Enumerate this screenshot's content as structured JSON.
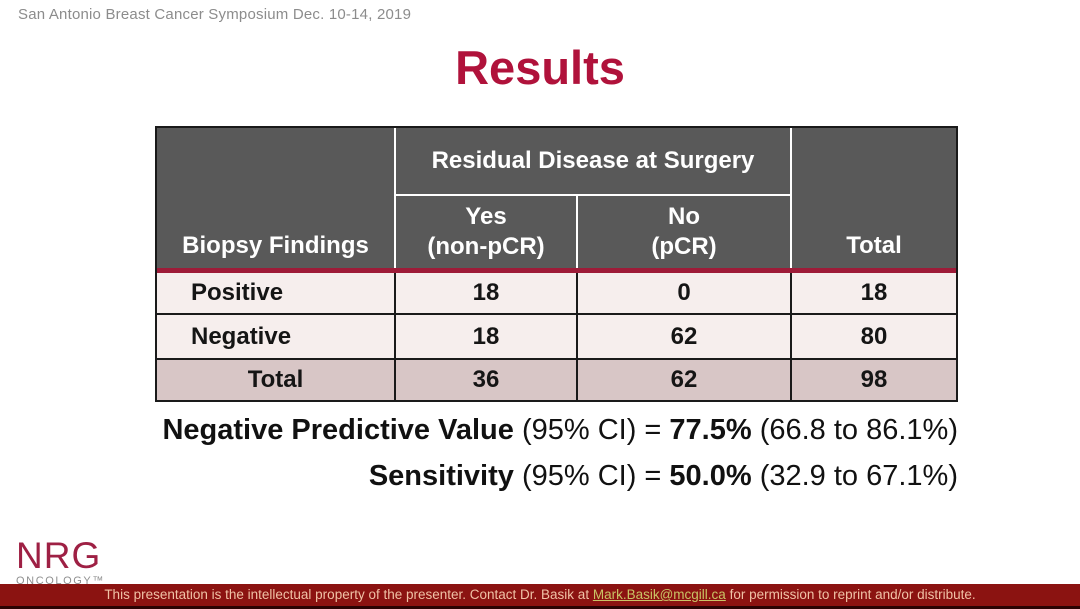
{
  "slide": {
    "conference": "San Antonio Breast Cancer Symposium Dec. 10-14, 2019",
    "title": "Results"
  },
  "table": {
    "col_group_header": "Residual Disease at Surgery",
    "row_header_label": "Biopsy Findings",
    "col_yes": "Yes\n(non-pCR)",
    "col_no": "No\n(pCR)",
    "col_total": "Total",
    "rows": [
      {
        "label": "Positive",
        "yes": "18",
        "no": "0",
        "total": "18"
      },
      {
        "label": "Negative",
        "yes": "18",
        "no": "62",
        "total": "80"
      },
      {
        "label": "Total",
        "yes": "36",
        "no": "62",
        "total": "98"
      }
    ]
  },
  "stats": [
    {
      "name": "Negative Predictive Value",
      "ci": " (95% CI) = ",
      "value": "77.5%",
      "range": " (66.8 to 86.1%)"
    },
    {
      "name": "Sensitivity",
      "ci": " (95% CI) = ",
      "value": "50.0%",
      "range": " (32.9 to 67.1%)"
    }
  ],
  "footer": {
    "logo_line1": "NRG",
    "logo_line2": "ONCOLOGY™",
    "bar_text_before": "This presentation is the intellectual property of the presenter. Contact Dr. Basik at ",
    "bar_link": "Mark.Basik@mcgill.ca",
    "bar_text_after": " for permission to reprint and/or distribute."
  },
  "colors": {
    "accent_red": "#B0123B",
    "divider_red": "#9E1B38",
    "header_gray": "#595959",
    "header_text": "#FFFFFF",
    "row_pink": "#F6EEED",
    "total_row_pink": "#D8C6C6",
    "table_border": "#1A1A1A",
    "footer_bar_bg": "#8B1311",
    "footer_bar_text": "#F0C2A6",
    "footer_link_yellow": "#C9C365",
    "logo_red": "#9E2044",
    "muted_gray": "#8C8C8C"
  }
}
